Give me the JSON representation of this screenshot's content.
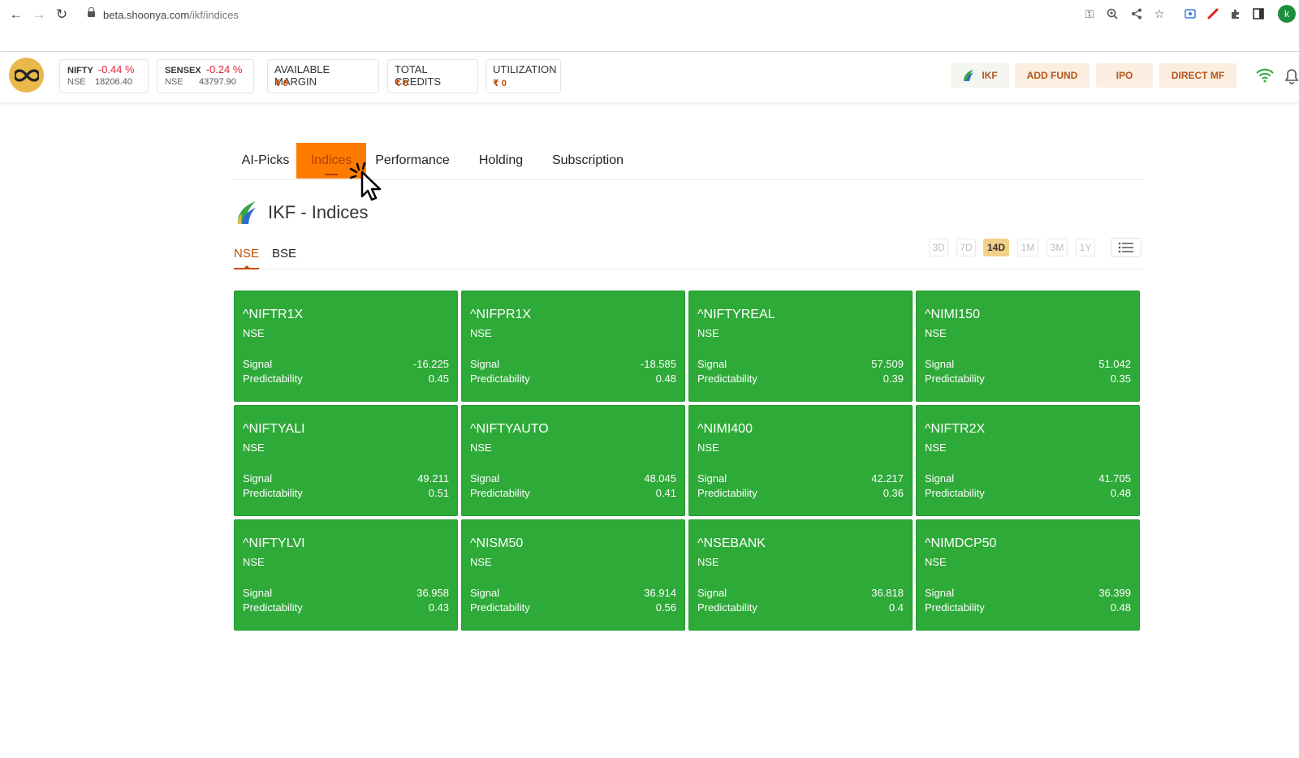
{
  "browser": {
    "url_host": "beta.shoonya.com",
    "url_path": "/ikf/indices",
    "profile_initial": "k"
  },
  "header": {
    "tickers": [
      {
        "name": "NIFTY",
        "change": "-0.44 %",
        "exchange": "NSE",
        "value": "18206.40"
      },
      {
        "name": "SENSEX",
        "change": "-0.24 %",
        "exchange": "NSE",
        "value": "43797.90"
      }
    ],
    "margins": [
      {
        "label": "AVAILABLE MARGIN",
        "amount": "₹ 0"
      },
      {
        "label": "TOTAL CREDITS",
        "amount": "₹ 0"
      },
      {
        "label": "UTILIZATION",
        "amount": "₹ 0"
      }
    ],
    "buttons": {
      "ikf": "IKF",
      "add_fund": "ADD FUND",
      "ipo": "IPO",
      "direct_mf": "DIRECT MF"
    }
  },
  "tabs": [
    "AI-Picks",
    "Indices",
    "Performance",
    "Holding",
    "Subscription"
  ],
  "active_tab": "Indices",
  "page_title": "IKF - Indices",
  "exchange_tabs": [
    "NSE",
    "BSE"
  ],
  "active_exchange": "NSE",
  "periods": [
    "3D",
    "7D",
    "14D",
    "1M",
    "3M",
    "1Y"
  ],
  "active_period": "14D",
  "card_labels": {
    "signal": "Signal",
    "predictability": "Predictability"
  },
  "cards": [
    {
      "symbol": "^NIFTR1X",
      "exchange": "NSE",
      "signal": "-16.225",
      "predictability": "0.45"
    },
    {
      "symbol": "^NIFPR1X",
      "exchange": "NSE",
      "signal": "-18.585",
      "predictability": "0.48"
    },
    {
      "symbol": "^NIFTYREAL",
      "exchange": "NSE",
      "signal": "57.509",
      "predictability": "0.39"
    },
    {
      "symbol": "^NIMI150",
      "exchange": "NSE",
      "signal": "51.042",
      "predictability": "0.35"
    },
    {
      "symbol": "^NIFTYALI",
      "exchange": "NSE",
      "signal": "49.211",
      "predictability": "0.51"
    },
    {
      "symbol": "^NIFTYAUTO",
      "exchange": "NSE",
      "signal": "48.045",
      "predictability": "0.41"
    },
    {
      "symbol": "^NIMI400",
      "exchange": "NSE",
      "signal": "42.217",
      "predictability": "0.36"
    },
    {
      "symbol": "^NIFTR2X",
      "exchange": "NSE",
      "signal": "41.705",
      "predictability": "0.48"
    },
    {
      "symbol": "^NIFTYLVI",
      "exchange": "NSE",
      "signal": "36.958",
      "predictability": "0.43"
    },
    {
      "symbol": "^NISM50",
      "exchange": "NSE",
      "signal": "36.914",
      "predictability": "0.56"
    },
    {
      "symbol": "^NSEBANK",
      "exchange": "NSE",
      "signal": "36.818",
      "predictability": "0.4"
    },
    {
      "symbol": "^NIMDCP50",
      "exchange": "NSE",
      "signal": "36.399",
      "predictability": "0.48"
    }
  ],
  "colors": {
    "card_green": "#2eaa38",
    "accent_orange": "#ff7b00",
    "negative_red": "#e0233a",
    "brand_gold": "#e8b84b"
  }
}
